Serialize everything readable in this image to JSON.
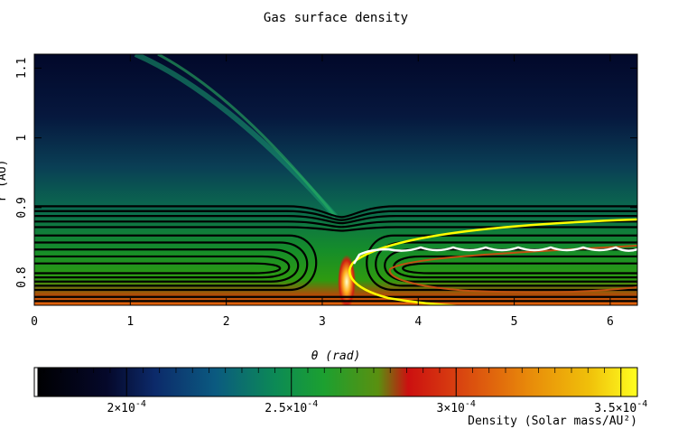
{
  "chart_data": {
    "type": "heatmap",
    "title": "Gas surface density",
    "xlabel": "θ (rad)",
    "ylabel": "r (AU)",
    "xlim": [
      0,
      6.283
    ],
    "ylim": [
      0.76,
      1.12
    ],
    "xticks": [
      "0",
      "1",
      "2",
      "3",
      "4",
      "5",
      "6"
    ],
    "xtick_values": [
      0,
      1,
      2,
      3,
      4,
      5,
      6
    ],
    "yticks": [
      "0.8",
      "0.9",
      "1",
      "1.1"
    ],
    "ytick_values": [
      0.8,
      0.9,
      1.0,
      1.1
    ],
    "colorbar": {
      "label": "Density (Solar mass/AU²)",
      "range": [
        0.000172,
        0.000355
      ],
      "ticks": [
        {
          "value": 0.0002,
          "mantissa": "2",
          "exp": "-4"
        },
        {
          "value": 0.00025,
          "mantissa": "2.5",
          "exp": "-4"
        },
        {
          "value": 0.0003,
          "mantissa": "3",
          "exp": "-4"
        },
        {
          "value": 0.00035,
          "mantissa": "3.5",
          "exp": "-4"
        }
      ]
    },
    "planet": {
      "theta": 3.2,
      "r": 0.8
    },
    "overlays": {
      "streamline_color": "#000000",
      "separatrix_outer_color": "#ffff00",
      "separatrix_inner_color": "#c05010",
      "wake_line_color": "#ffffff"
    }
  }
}
